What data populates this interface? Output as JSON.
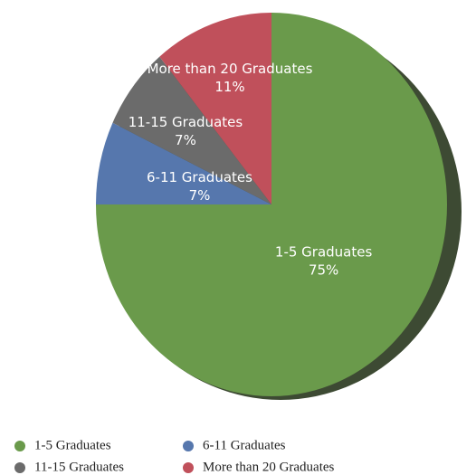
{
  "chart_data": {
    "type": "pie",
    "categories": [
      "1-5 Graduates",
      "6-11 Graduates",
      "11-15 Graduates",
      "More than 20 Graduates"
    ],
    "values": [
      75,
      7,
      7,
      11
    ],
    "value_labels": [
      "75%",
      "7%",
      "7%",
      "11%"
    ],
    "colors": [
      "#6a9a4b",
      "#5677ad",
      "#6b6b6b",
      "#c0505b"
    ],
    "legend": "bottom"
  }
}
